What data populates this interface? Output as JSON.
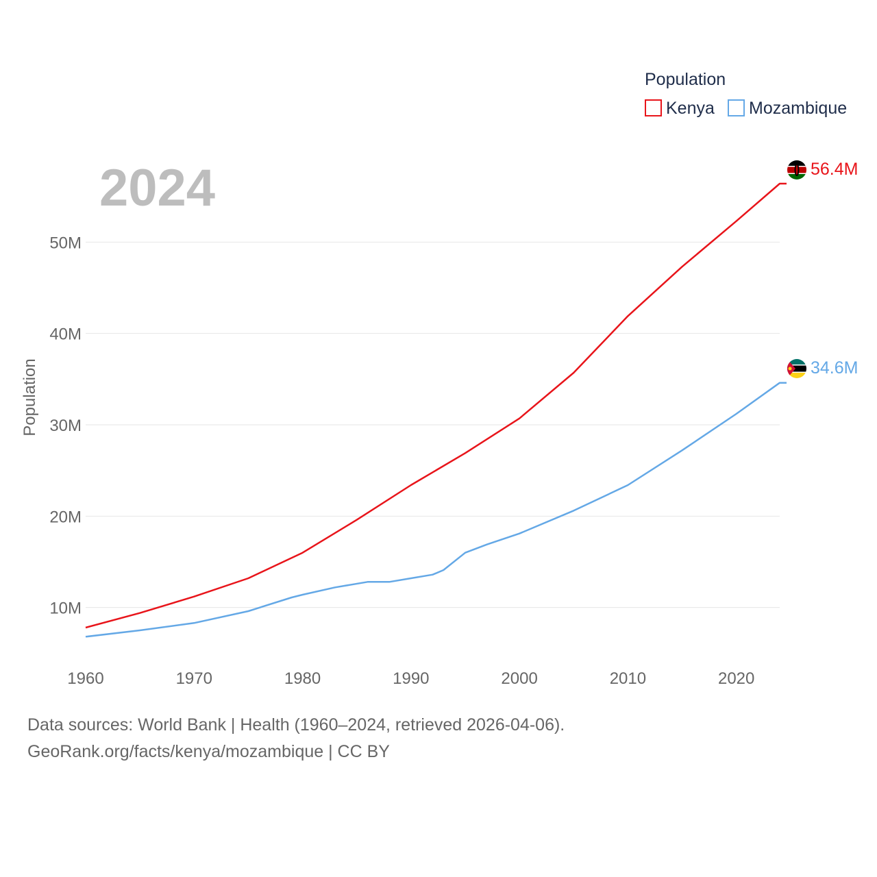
{
  "chart_data": {
    "type": "line",
    "year_label": "2024",
    "ylabel": "Population",
    "xlim": [
      1960,
      2024
    ],
    "ylim": [
      4500000,
      61500000
    ],
    "x_ticks": [
      1960,
      1970,
      1980,
      1990,
      2000,
      2010,
      2020
    ],
    "y_ticks": [
      {
        "value": 10000000,
        "label": "10M"
      },
      {
        "value": 20000000,
        "label": "20M"
      },
      {
        "value": 30000000,
        "label": "30M"
      },
      {
        "value": 40000000,
        "label": "40M"
      },
      {
        "value": 50000000,
        "label": "50M"
      }
    ],
    "legend": {
      "title": "Population",
      "placement": "top-right"
    },
    "series": [
      {
        "name": "Kenya",
        "color": "#e8141a",
        "end_label": "56.4M",
        "flag_icon": "kenya-flag-icon",
        "points": [
          [
            1960,
            7800000
          ],
          [
            1965,
            9400000
          ],
          [
            1970,
            11200000
          ],
          [
            1975,
            13200000
          ],
          [
            1980,
            16000000
          ],
          [
            1985,
            19600000
          ],
          [
            1990,
            23400000
          ],
          [
            1995,
            26900000
          ],
          [
            2000,
            30700000
          ],
          [
            2005,
            35700000
          ],
          [
            2010,
            41900000
          ],
          [
            2015,
            47300000
          ],
          [
            2020,
            52300000
          ],
          [
            2024,
            56400000
          ]
        ]
      },
      {
        "name": "Mozambique",
        "color": "#64a8e6",
        "end_label": "34.6M",
        "flag_icon": "mozambique-flag-icon",
        "points": [
          [
            1960,
            6800000
          ],
          [
            1965,
            7500000
          ],
          [
            1970,
            8300000
          ],
          [
            1975,
            9600000
          ],
          [
            1979,
            11100000
          ],
          [
            1980,
            11400000
          ],
          [
            1983,
            12200000
          ],
          [
            1986,
            12800000
          ],
          [
            1988,
            12800000
          ],
          [
            1990,
            13200000
          ],
          [
            1992,
            13600000
          ],
          [
            1993,
            14100000
          ],
          [
            1995,
            16000000
          ],
          [
            1997,
            16900000
          ],
          [
            2000,
            18100000
          ],
          [
            2005,
            20600000
          ],
          [
            2010,
            23400000
          ],
          [
            2015,
            27200000
          ],
          [
            2020,
            31200000
          ],
          [
            2024,
            34600000
          ]
        ]
      }
    ]
  },
  "footer": {
    "line1": "Data sources: World Bank | Health (1960–2024, retrieved 2026-04-06).",
    "line2": "GeoRank.org/facts/kenya/mozambique | CC BY"
  }
}
